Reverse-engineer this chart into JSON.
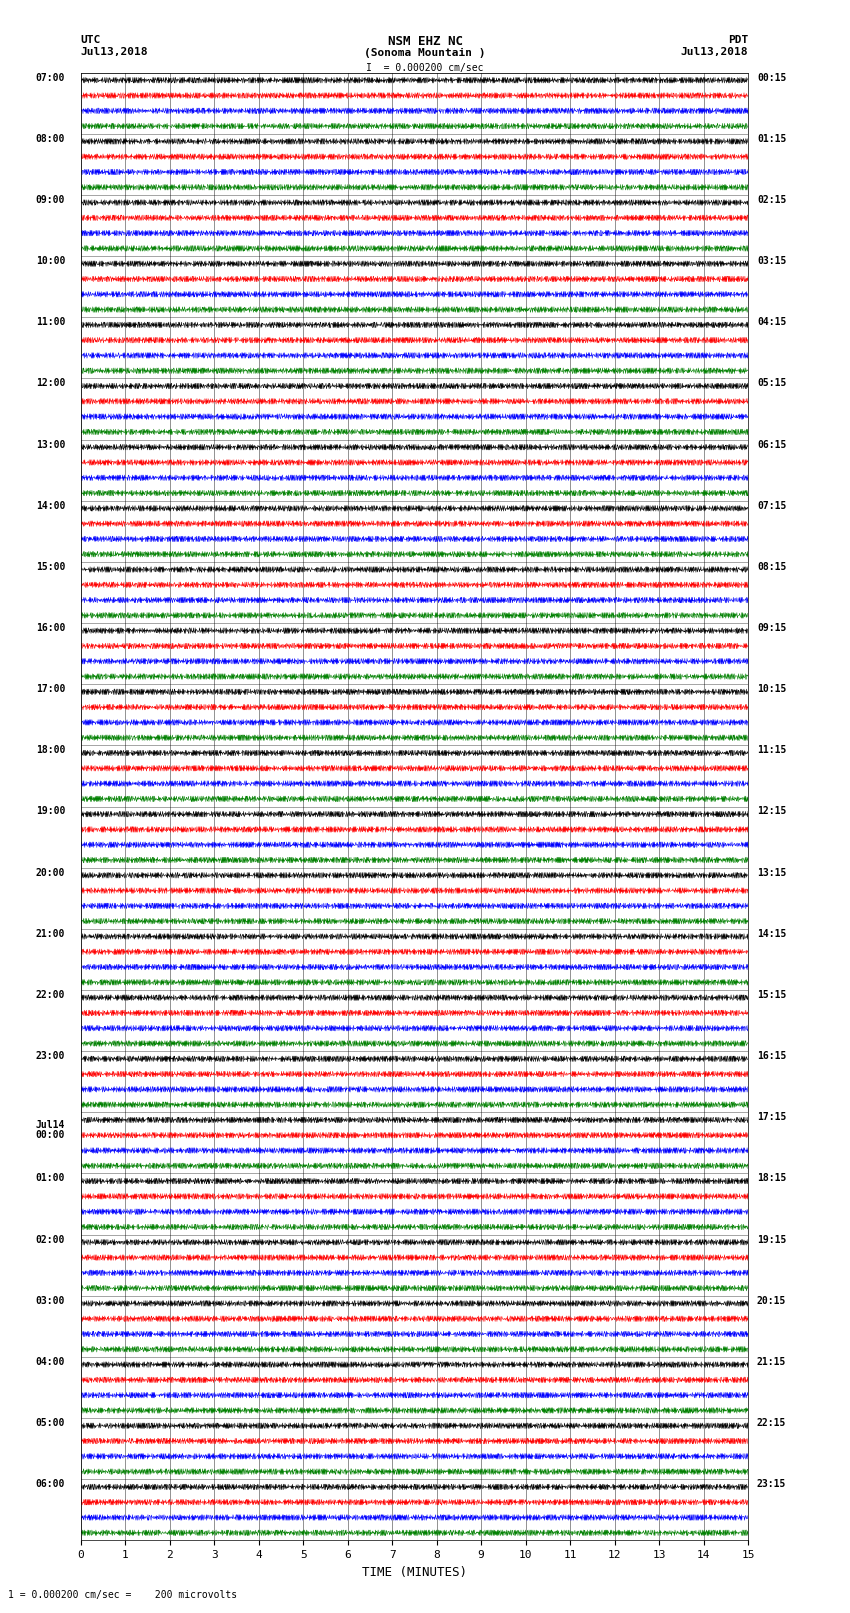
{
  "title_line1": "NSM EHZ NC",
  "title_line2": "(Sonoma Mountain )",
  "scale_text": "I  = 0.000200 cm/sec",
  "left_label_top": "UTC",
  "left_label_date": "Jul13,2018",
  "right_label_top": "PDT",
  "right_label_date": "Jul13,2018",
  "xlabel": "TIME (MINUTES)",
  "bottom_note": "1 = 0.000200 cm/sec =    200 microvolts",
  "xmin": 0,
  "xmax": 15,
  "trace_colors": [
    "black",
    "red",
    "blue",
    "green"
  ],
  "background_color": "white",
  "utc_hour_labels": [
    "07:00",
    "08:00",
    "09:00",
    "10:00",
    "11:00",
    "12:00",
    "13:00",
    "14:00",
    "15:00",
    "16:00",
    "17:00",
    "18:00",
    "19:00",
    "20:00",
    "21:00",
    "22:00",
    "23:00",
    "Jul14\n00:00",
    "01:00",
    "02:00",
    "03:00",
    "04:00",
    "05:00",
    "06:00"
  ],
  "pdt_hour_labels": [
    "00:15",
    "01:15",
    "02:15",
    "03:15",
    "04:15",
    "05:15",
    "06:15",
    "07:15",
    "08:15",
    "09:15",
    "10:15",
    "11:15",
    "12:15",
    "13:15",
    "14:15",
    "15:15",
    "16:15",
    "17:15",
    "18:15",
    "19:15",
    "20:15",
    "21:15",
    "22:15",
    "23:15"
  ],
  "num_hours": 24,
  "traces_per_hour": 4,
  "n_samples": 1500,
  "amplitude": 0.12,
  "noise_seed": 12345,
  "linewidth": 0.4,
  "grid_linewidth": 0.5,
  "grid_color": "#000000",
  "label_fontsize": 7,
  "title_fontsize": 9,
  "axis_fontsize": 8
}
